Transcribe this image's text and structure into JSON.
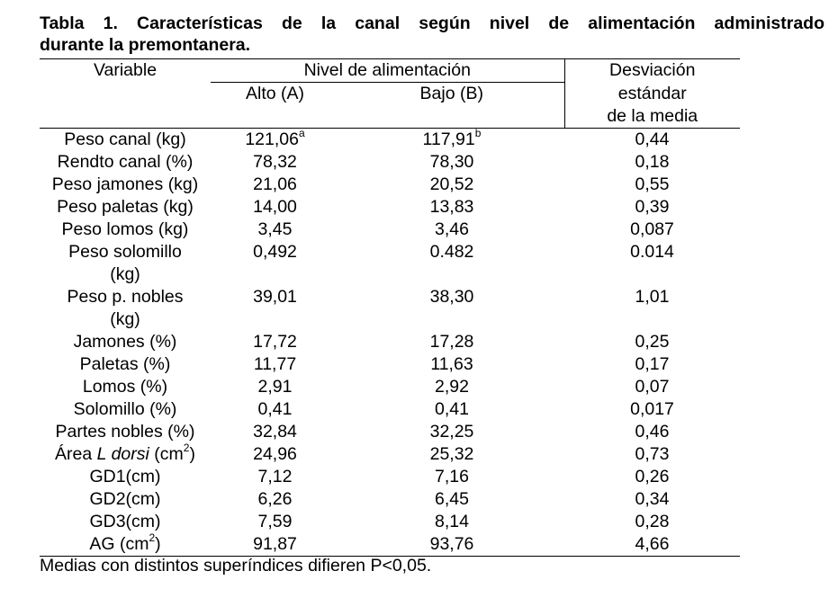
{
  "title": {
    "line1": "Tabla 1. Características de la canal según nivel de alimentación administrado",
    "line2": "durante la premontanera."
  },
  "headers": {
    "variable": "Variable",
    "nivel": "Nivel de alimentación",
    "alto": "Alto (A)",
    "bajo": "Bajo (B)",
    "sd_line1": "Desviación",
    "sd_line2": "estándar",
    "sd_line3": "de la media"
  },
  "rows": [
    {
      "var": "Peso canal (kg)",
      "a": "121,06",
      "a_sup": "a",
      "b": "117,91",
      "b_sup": "b",
      "sd": "0,44"
    },
    {
      "var": "Rendto canal  (%)",
      "a": "78,32",
      "b": "78,30",
      "sd": "0,18"
    },
    {
      "var": "Peso jamones (kg)",
      "a": "21,06",
      "b": "20,52",
      "sd": "0,55"
    },
    {
      "var": "Peso paletas (kg)",
      "a": "14,00",
      "b": "13,83",
      "sd": "0,39"
    },
    {
      "var": "Peso lomos (kg)",
      "a": "3,45",
      "b": "3,46",
      "sd": "0,087"
    },
    {
      "var_line1": "Peso solomillo",
      "var_line2": "(kg)",
      "a": "0,492",
      "b": "0.482",
      "sd": "0.014"
    },
    {
      "var_line1": "Peso p. nobles",
      "var_line2": "(kg)",
      "a": "39,01",
      "b": "38,30",
      "sd": "1,01"
    },
    {
      "var": "Jamones (%)",
      "a": "17,72",
      "b": "17,28",
      "sd": "0,25"
    },
    {
      "var": "Paletas (%)",
      "a": "11,77",
      "b": "11,63",
      "sd": "0,17"
    },
    {
      "var": "Lomos (%)",
      "a": "2,91",
      "b": "2,92",
      "sd": "0,07"
    },
    {
      "var": "Solomillo (%)",
      "a": "0,41",
      "b": "0,41",
      "sd": "0,017"
    },
    {
      "var": "Partes nobles (%)",
      "a": "32,84",
      "b": "32,25",
      "sd": "0,46"
    },
    {
      "var_pre": "Área ",
      "var_italic": "L dorsi",
      "var_post": " (cm",
      "var_sup": "2",
      "var_end": ")",
      "a": "24,96",
      "b": "25,32",
      "sd": "0,73"
    },
    {
      "var": "GD1(cm)",
      "a": "7,12",
      "b": "7,16",
      "sd": "0,26"
    },
    {
      "var": "GD2(cm)",
      "a": "6,26",
      "b": "6,45",
      "sd": "0,34"
    },
    {
      "var": "GD3(cm)",
      "a": "7,59",
      "b": "8,14",
      "sd": "0,28"
    },
    {
      "var_pre": "AG (cm",
      "var_sup": "2",
      "var_end": ")",
      "a": "91,87",
      "b": "93,76",
      "sd": "4,66"
    }
  ],
  "note": "Medias con distintos superíndices difieren P<0,05."
}
